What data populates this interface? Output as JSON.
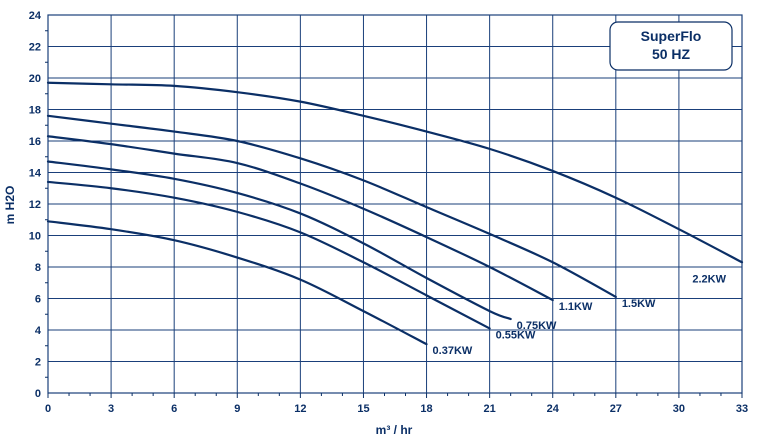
{
  "chart_data": {
    "type": "line",
    "title": "SuperFlo",
    "subtitle": "50 HZ",
    "xlabel": "m³ / hr",
    "ylabel": "m H2O",
    "xlim": [
      0,
      33
    ],
    "ylim": [
      0,
      24
    ],
    "xticks": [
      "0",
      "3",
      "6",
      "9",
      "12",
      "15",
      "18",
      "21",
      "24",
      "27",
      "30",
      "33"
    ],
    "yticks": [
      "0",
      "2",
      "4",
      "6",
      "8",
      "10",
      "12",
      "14",
      "16",
      "18",
      "20",
      "22",
      "24"
    ],
    "grid": true,
    "colors": {
      "line": "#0b2f66",
      "grid": "#1a3f7a",
      "text": "#0b2f66"
    },
    "series": [
      {
        "name": "0.37KW",
        "points": [
          [
            0,
            10.9
          ],
          [
            3,
            10.4
          ],
          [
            6,
            9.7
          ],
          [
            9,
            8.6
          ],
          [
            12,
            7.2
          ],
          [
            15,
            5.2
          ],
          [
            18,
            3.1
          ]
        ]
      },
      {
        "name": "0.55KW",
        "points": [
          [
            0,
            13.4
          ],
          [
            3,
            13.0
          ],
          [
            6,
            12.4
          ],
          [
            9,
            11.5
          ],
          [
            12,
            10.2
          ],
          [
            15,
            8.3
          ],
          [
            18,
            6.2
          ],
          [
            21,
            4.1
          ]
        ]
      },
      {
        "name": "0.75KW",
        "points": [
          [
            0,
            14.7
          ],
          [
            3,
            14.2
          ],
          [
            6,
            13.6
          ],
          [
            9,
            12.7
          ],
          [
            12,
            11.4
          ],
          [
            15,
            9.5
          ],
          [
            18,
            7.3
          ],
          [
            21,
            5.2
          ],
          [
            22,
            4.7
          ]
        ]
      },
      {
        "name": "1.1KW",
        "points": [
          [
            0,
            16.3
          ],
          [
            3,
            15.8
          ],
          [
            6,
            15.2
          ],
          [
            9,
            14.6
          ],
          [
            12,
            13.3
          ],
          [
            15,
            11.7
          ],
          [
            18,
            9.9
          ],
          [
            21,
            8.0
          ],
          [
            24,
            5.9
          ]
        ]
      },
      {
        "name": "1.5KW",
        "points": [
          [
            0,
            17.6
          ],
          [
            3,
            17.1
          ],
          [
            6,
            16.6
          ],
          [
            9,
            16.0
          ],
          [
            12,
            14.9
          ],
          [
            15,
            13.5
          ],
          [
            18,
            11.8
          ],
          [
            21,
            10.1
          ],
          [
            24,
            8.3
          ],
          [
            27,
            6.1
          ]
        ]
      },
      {
        "name": "2.2KW",
        "points": [
          [
            0,
            19.7
          ],
          [
            3,
            19.6
          ],
          [
            6,
            19.5
          ],
          [
            9,
            19.1
          ],
          [
            12,
            18.5
          ],
          [
            15,
            17.6
          ],
          [
            18,
            16.6
          ],
          [
            21,
            15.5
          ],
          [
            24,
            14.1
          ],
          [
            27,
            12.4
          ],
          [
            30,
            10.4
          ],
          [
            33,
            8.3
          ]
        ]
      }
    ]
  }
}
